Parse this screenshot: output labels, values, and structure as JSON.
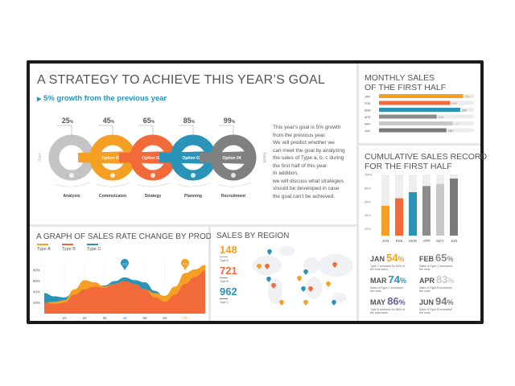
{
  "strategy": {
    "title": "A STRATEGY TO ACHIEVE THIS YEAR’S GOAL",
    "subtitle": "5% growth from the previous year",
    "start_label": "Start",
    "finish_label": "Finish",
    "steps": [
      {
        "percent": "25",
        "unit": "%",
        "label": "Analysis",
        "option": "",
        "color": "#c4c4c4",
        "icon": "money-bag-icon"
      },
      {
        "percent": "45",
        "unit": "%",
        "label": "Commuicaion",
        "option": "Option 01",
        "color": "#f6a023",
        "icon": "flask-icon"
      },
      {
        "percent": "65",
        "unit": "%",
        "label": "Strategy",
        "option": "Option 02",
        "color": "#f26a3a",
        "icon": "clock-icon"
      },
      {
        "percent": "85",
        "unit": "%",
        "label": "Planning",
        "option": "Option 03",
        "color": "#2a93b8",
        "icon": "calendar-icon"
      },
      {
        "percent": "99",
        "unit": "%",
        "label": "Recruitment",
        "option": "Option 04",
        "color": "#808080",
        "icon": "lightbulb-icon"
      }
    ],
    "description": [
      "This year's goal is 5% growth",
      "from the previous year.",
      "We will predict whether we",
      "can meet the goal by analyzing",
      "the sales of Type a, b, c during",
      "the first half of this year.",
      "In addition,",
      "we will discuss what strategies",
      "should be developed in case",
      "the goal can't be achieved."
    ]
  },
  "monthly": {
    "title_lines": [
      "MONTHLY SALES",
      "OF THE FIRST HALF"
    ],
    "chart_data": {
      "type": "bar",
      "orientation": "horizontal",
      "categories": [
        "JAN",
        "FEB",
        "MAR",
        "APR",
        "MAY",
        "JUN"
      ],
      "values": [
        354,
        299,
        342,
        243,
        310,
        284
      ],
      "colors": [
        "#f6a023",
        "#f26a3a",
        "#2a93b8",
        "#8c8c8c",
        "#c8c8c8",
        "#7a7a7a"
      ],
      "max": 400
    }
  },
  "cumulative": {
    "title_lines": [
      "CUMULATIVE SALES RECORD",
      "FOR THE FIRST HALF"
    ],
    "chart_data": {
      "type": "bar",
      "categories": [
        "JAN",
        "FEB",
        "MAR",
        "APR",
        "MAY",
        "JUN"
      ],
      "values": [
        54,
        65,
        74,
        83,
        86,
        94
      ],
      "yticks": [
        "100%",
        "80%",
        "60%",
        "40%",
        "20%"
      ],
      "ylim": [
        10,
        100
      ],
      "colors": [
        "#f6a023",
        "#f26a3a",
        "#2a93b8",
        "#8c8c8c",
        "#c8c8c8",
        "#7a7a7a"
      ]
    },
    "stats": [
      {
        "month": "JAN",
        "value": "54",
        "unit": "%",
        "color": "#f6a023",
        "note": "Type C accounts for 54% of the total sales."
      },
      {
        "month": "FEB",
        "value": "65",
        "unit": "%",
        "color": "#8c8c8c",
        "note": "Sales of Type C increased the most."
      },
      {
        "month": "MAR",
        "value": "74",
        "unit": "%",
        "color": "#2a93b8",
        "note": "Sales of Type C increased the most."
      },
      {
        "month": "APR",
        "value": "83",
        "unit": "%",
        "color": "#c8c8c8",
        "note": "Sales of Type B increased the most."
      },
      {
        "month": "MAY",
        "value": "86",
        "unit": "%",
        "color": "#6b5fa0",
        "note": "Type B accounts for 86% of the total sales."
      },
      {
        "month": "JUN",
        "value": "94",
        "unit": "%",
        "color": "#7a7a7a",
        "note": "Sales of Type B increased the most."
      }
    ]
  },
  "rate": {
    "title": "A GRAPH OF SALES RATE CHANGE BY PRODUCT",
    "chart_data": {
      "type": "area",
      "x": [
        0,
        5,
        10,
        15,
        20,
        25,
        30,
        35,
        40,
        45,
        50,
        55,
        60,
        65,
        70,
        75,
        80
      ],
      "series": [
        {
          "name": "Type A",
          "color": "#f6a023",
          "values": [
            20,
            22,
            25,
            45,
            62,
            58,
            50,
            55,
            60,
            55,
            45,
            38,
            33,
            50,
            75,
            82,
            90
          ]
        },
        {
          "name": "Type B",
          "color": "#f26a3a",
          "values": [
            20,
            18,
            20,
            35,
            45,
            50,
            48,
            55,
            60,
            55,
            45,
            30,
            22,
            35,
            55,
            68,
            80
          ]
        },
        {
          "name": "Type C",
          "color": "#2a93b8",
          "values": [
            38,
            32,
            30,
            40,
            48,
            50,
            52,
            60,
            67,
            62,
            58,
            42,
            30,
            42,
            60,
            72,
            80
          ]
        }
      ],
      "xticks": [
        "10",
        "20",
        "30",
        "40",
        "50",
        "60",
        "70"
      ],
      "yticks": [
        "80%",
        "60%",
        "40%",
        "20%"
      ],
      "xlim": [
        0,
        80
      ],
      "ylim": [
        0,
        100
      ],
      "annotations": [
        {
          "x": 40,
          "label": "3.2",
          "color": "#2a93b8"
        },
        {
          "x": 70,
          "label": "4.5",
          "color": "#f6a023"
        }
      ]
    }
  },
  "region": {
    "title": "SALES BY REGION",
    "stats": [
      {
        "value": "148",
        "label": "Type A",
        "color": "#f6a023"
      },
      {
        "value": "721",
        "label": "Type B",
        "color": "#f26a3a"
      },
      {
        "value": "962",
        "label": "Type C",
        "color": "#2a93b8"
      }
    ]
  }
}
